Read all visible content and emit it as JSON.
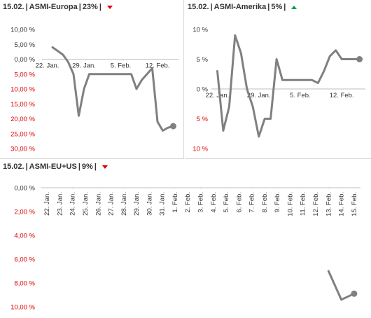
{
  "panels": [
    {
      "date": "15.02.",
      "name": "ASMI-Europa",
      "pct": "23%",
      "trend": "down"
    },
    {
      "date": "15.02.",
      "name": "ASMI-Amerika",
      "pct": "5%",
      "trend": "up"
    },
    {
      "date": "15.02.",
      "name": "ASMI-EU+US",
      "pct": "9%",
      "trend": "down"
    }
  ],
  "colors": {
    "line": "#808080",
    "negative": "#e00000",
    "axis": "#333333",
    "up": "#00a050",
    "down": "#e00000"
  },
  "chart_data": [
    {
      "type": "line",
      "title": "15.02. | ASMI-Europa | 23% |",
      "ylabel_ticks": [
        "10,00 %",
        "5,00 %",
        "0,00 %",
        "5,00 %",
        "10,00 %",
        "15,00 %",
        "20,00 %",
        "25,00 %",
        "30,00 %"
      ],
      "ylim": [
        -30,
        10
      ],
      "x_ticks": [
        "22. Jan.",
        "29. Jan.",
        "5. Feb.",
        "12. Feb."
      ],
      "x_tick_pos": [
        0,
        7,
        14,
        21
      ],
      "xlim": [
        -1,
        25
      ],
      "x": [
        1,
        3,
        4,
        5,
        6,
        7,
        8,
        9,
        10,
        11,
        12,
        13,
        14,
        15,
        16,
        17,
        18,
        19,
        20,
        21,
        22,
        23,
        24
      ],
      "values": [
        4,
        1.5,
        -1,
        -5,
        -19,
        -10,
        -5,
        -5,
        -5,
        -5,
        -5,
        -5,
        -5,
        -5,
        -5,
        -10,
        -7,
        -5,
        -3,
        -21,
        -24,
        -23,
        -22.5
      ]
    },
    {
      "type": "line",
      "title": "15.02. | ASMI-Amerika | 5% |",
      "ylabel_ticks": [
        "10 %",
        "5 %",
        "0 %",
        "5 %",
        "10 %"
      ],
      "ylim": [
        -10,
        10
      ],
      "x_ticks": [
        "22. Jan.",
        "29. Jan.",
        "5. Feb.",
        "12. Feb."
      ],
      "x_tick_pos": [
        0,
        7,
        14,
        21
      ],
      "xlim": [
        -1,
        25
      ],
      "x": [
        0,
        1,
        2,
        3,
        4,
        5,
        6,
        7,
        8,
        9,
        10,
        11,
        12,
        13,
        14,
        15,
        16,
        17,
        18,
        19,
        20,
        21,
        22,
        23,
        24
      ],
      "values": [
        3,
        -7,
        -3,
        9,
        6,
        0,
        -3,
        -8,
        -5,
        -5,
        5,
        1.5,
        1.5,
        1.5,
        1.5,
        1.5,
        1.5,
        1,
        3,
        5.5,
        6.5,
        5,
        5,
        5,
        5
      ]
    },
    {
      "type": "line",
      "title": "15.02. | ASMI-EU+US | 9% |",
      "ylabel_ticks": [
        "0,00 %",
        "2,00 %",
        "4,00 %",
        "6,00 %",
        "8,00 %",
        "10,00 %"
      ],
      "ylim": [
        -10,
        0
      ],
      "x_ticks": [
        "22. Jan.",
        "23. Jan.",
        "24. Jan.",
        "25. Jan.",
        "26. Jan.",
        "27. Jan.",
        "28. Jan.",
        "29. Jan.",
        "30. Jan.",
        "31. Jan.",
        "1. Feb.",
        "2. Feb.",
        "3. Feb.",
        "4. Feb.",
        "5. Feb.",
        "6. Feb.",
        "7. Feb.",
        "8. Feb.",
        "9. Feb.",
        "10. Feb.",
        "11. Feb.",
        "12. Feb.",
        "13. Feb.",
        "14. Feb.",
        "15. Feb."
      ],
      "x_tick_pos": [
        0,
        1,
        2,
        3,
        4,
        5,
        6,
        7,
        8,
        9,
        10,
        11,
        12,
        13,
        14,
        15,
        16,
        17,
        18,
        19,
        20,
        21,
        22,
        23,
        24
      ],
      "xlim": [
        -0.5,
        24.5
      ],
      "x": [
        22,
        23,
        24
      ],
      "values": [
        -7,
        -9.4,
        -8.9
      ]
    }
  ]
}
